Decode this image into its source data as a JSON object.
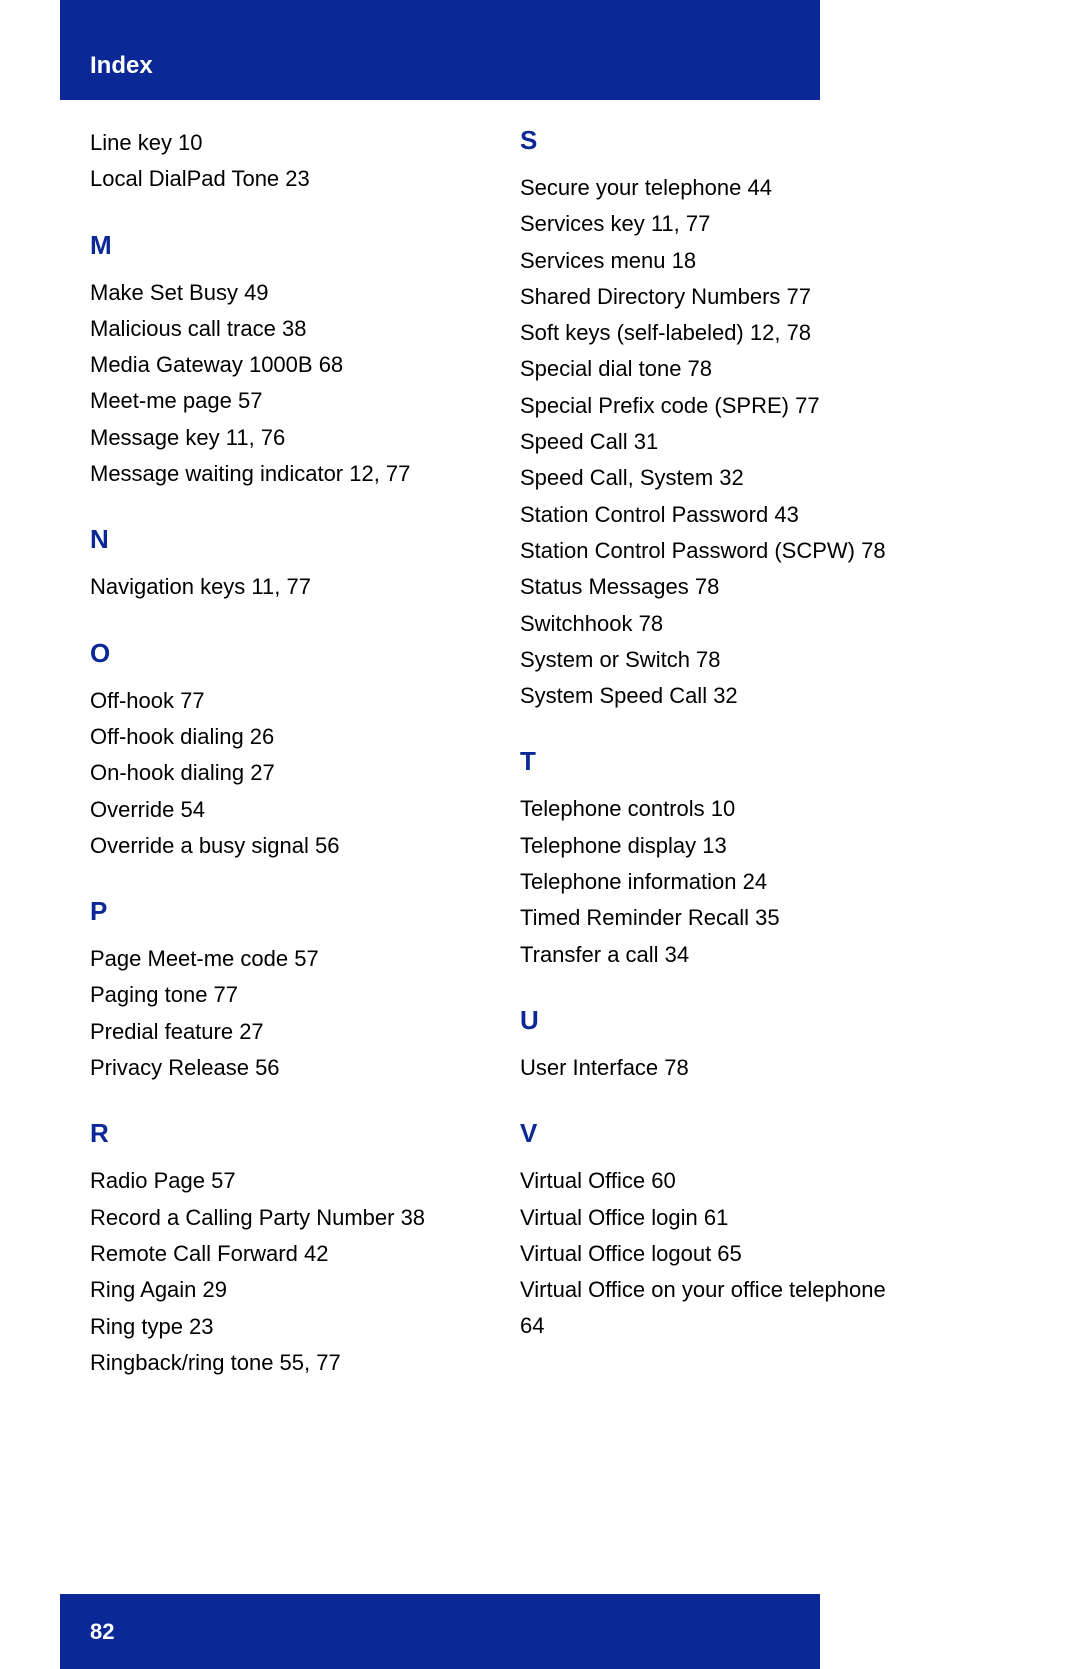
{
  "header": {
    "title": "Index"
  },
  "footer": {
    "pageNumber": "82"
  },
  "colors": {
    "brand": "#0a2896",
    "text": "#000000",
    "headerText": "#ffffff",
    "background": "#ffffff"
  },
  "left": {
    "topEntries": [
      "Line key 10",
      "Local DialPad Tone 23"
    ],
    "sections": [
      {
        "letter": "M",
        "entries": [
          "Make Set Busy 49",
          "Malicious call trace 38",
          "Media Gateway 1000B 68",
          "Meet-me page 57",
          "Message key 11, 76",
          "Message waiting indicator 12, 77"
        ]
      },
      {
        "letter": "N",
        "entries": [
          "Navigation keys 11, 77"
        ]
      },
      {
        "letter": "O",
        "entries": [
          "Off-hook 77",
          "Off-hook dialing 26",
          "On-hook dialing 27",
          "Override 54",
          "Override a busy signal 56"
        ]
      },
      {
        "letter": "P",
        "entries": [
          "Page Meet-me code 57",
          "Paging tone 77",
          "Predial feature 27",
          "Privacy Release 56"
        ]
      },
      {
        "letter": "R",
        "entries": [
          "Radio Page 57",
          "Record a Calling Party Number 38",
          "Remote Call Forward 42",
          "Ring Again 29",
          "Ring type 23",
          "Ringback/ring tone 55, 77"
        ]
      }
    ]
  },
  "right": {
    "sections": [
      {
        "letter": "S",
        "entries": [
          "Secure your telephone 44",
          "Services key 11, 77",
          "Services menu 18",
          "Shared Directory Numbers 77",
          "Soft keys (self-labeled) 12, 78",
          "Special dial tone 78",
          "Special Prefix code (SPRE) 77",
          "Speed Call 31",
          "Speed Call, System 32",
          "Station Control Password 43",
          "Station Control Password (SCPW) 78",
          "Status Messages 78",
          "Switchhook 78",
          "System or Switch 78",
          "System Speed Call 32"
        ]
      },
      {
        "letter": "T",
        "entries": [
          "Telephone controls 10",
          "Telephone display 13",
          "Telephone information 24",
          "Timed Reminder Recall 35",
          "Transfer a call 34"
        ]
      },
      {
        "letter": "U",
        "entries": [
          "User Interface 78"
        ]
      },
      {
        "letter": "V",
        "entries": [
          "Virtual Office 60",
          "Virtual Office login 61",
          "Virtual Office logout 65",
          "Virtual Office on your office telephone 64"
        ]
      }
    ]
  }
}
